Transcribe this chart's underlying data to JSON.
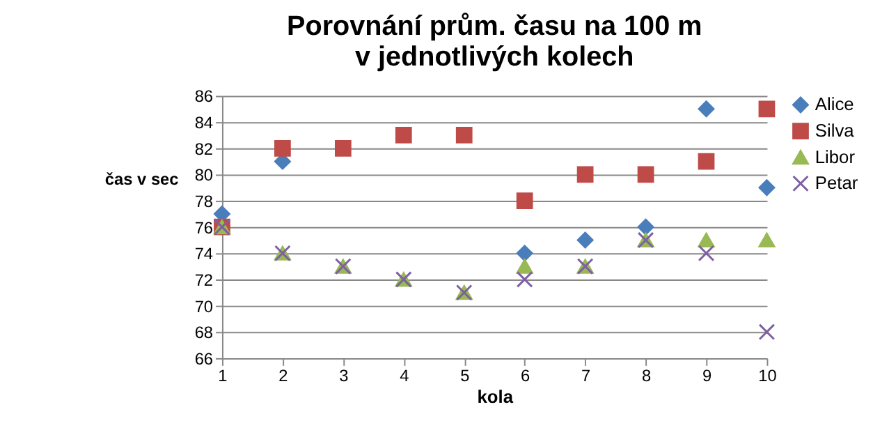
{
  "chart_data": {
    "type": "scatter",
    "title": "Porovnání prům. času na 100 m\nv jednotlivých kolech",
    "xlabel": "kola",
    "ylabel": "čas v sec",
    "x": [
      1,
      2,
      3,
      4,
      5,
      6,
      7,
      8,
      9,
      10
    ],
    "series": [
      {
        "name": "Alice",
        "color": "#4a7ebb",
        "marker": "diamond",
        "values": [
          77,
          81,
          null,
          null,
          null,
          74,
          75,
          76,
          85,
          79
        ]
      },
      {
        "name": "Silva",
        "color": "#be4b48",
        "marker": "square",
        "values": [
          76,
          82,
          82,
          83,
          83,
          78,
          80,
          80,
          81,
          85
        ]
      },
      {
        "name": "Libor",
        "color": "#98b954",
        "marker": "triangle",
        "values": [
          76,
          74,
          73,
          72,
          71,
          73,
          73,
          75,
          75,
          75
        ]
      },
      {
        "name": "Petar",
        "color": "#7d60a0",
        "marker": "cross",
        "values": [
          76,
          74,
          73,
          72,
          71,
          72,
          73,
          75,
          74,
          68
        ]
      }
    ],
    "xlim": [
      1,
      10
    ],
    "xticks": [
      1,
      2,
      3,
      4,
      5,
      6,
      7,
      8,
      9,
      10
    ],
    "ylim": [
      66,
      86
    ],
    "yticks": [
      66,
      68,
      70,
      72,
      74,
      76,
      78,
      80,
      82,
      84,
      86
    ],
    "grid": "y",
    "legend": "right"
  }
}
